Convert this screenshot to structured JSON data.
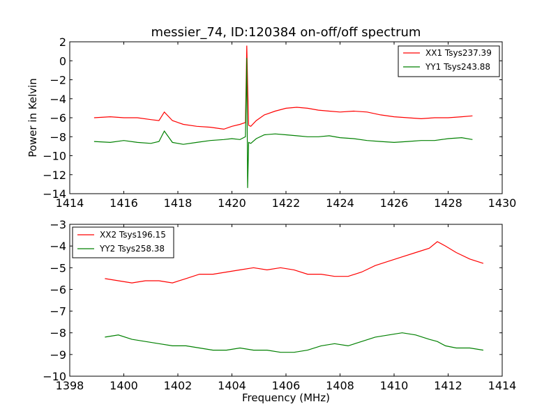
{
  "chart_data": [
    {
      "type": "line",
      "title": "messier_74, ID:120384 on-off/off spectrum",
      "ylabel": "Power in Kelvin",
      "xlabel": "",
      "xlim": [
        1414,
        1430
      ],
      "ylim": [
        -14,
        2
      ],
      "xticks": [
        1414,
        1416,
        1418,
        1420,
        1422,
        1424,
        1426,
        1428,
        1430
      ],
      "yticks": [
        -14,
        -12,
        -10,
        -8,
        -6,
        -4,
        -2,
        0,
        2
      ],
      "xtick_labels": [
        "1414",
        "1416",
        "1418",
        "1420",
        "1422",
        "1424",
        "1426",
        "1428",
        "1430"
      ],
      "ytick_labels": [
        "−14",
        "−12",
        "−10",
        "−8",
        "−6",
        "−4",
        "−2",
        "0",
        "2"
      ],
      "grid": false,
      "legend_position": "top-right",
      "series": [
        {
          "name": "XX1 Tsys237.39",
          "color": "#ff0000",
          "x": [
            1414.9,
            1415.5,
            1416.0,
            1416.5,
            1417.0,
            1417.3,
            1417.5,
            1417.8,
            1418.2,
            1418.7,
            1419.2,
            1419.7,
            1420.0,
            1420.3,
            1420.5,
            1420.55,
            1420.58,
            1420.62,
            1420.7,
            1420.9,
            1421.2,
            1421.6,
            1422.0,
            1422.4,
            1422.8,
            1423.2,
            1423.6,
            1424.0,
            1424.5,
            1425.0,
            1425.5,
            1426.0,
            1426.5,
            1427.0,
            1427.5,
            1428.0,
            1428.5,
            1428.9
          ],
          "y": [
            -6.0,
            -5.9,
            -6.0,
            -6.0,
            -6.2,
            -6.3,
            -5.4,
            -6.3,
            -6.7,
            -6.9,
            -7.0,
            -7.2,
            -6.9,
            -6.7,
            -6.5,
            1.6,
            -2.5,
            -6.8,
            -6.9,
            -6.3,
            -5.7,
            -5.3,
            -5.0,
            -4.9,
            -5.0,
            -5.2,
            -5.3,
            -5.4,
            -5.3,
            -5.4,
            -5.7,
            -5.9,
            -6.0,
            -6.1,
            -6.0,
            -6.0,
            -5.9,
            -5.8
          ]
        },
        {
          "name": "YY1 Tsys243.88",
          "color": "#008000",
          "x": [
            1414.9,
            1415.5,
            1416.0,
            1416.5,
            1417.0,
            1417.3,
            1417.5,
            1417.8,
            1418.2,
            1418.7,
            1419.2,
            1419.7,
            1420.0,
            1420.3,
            1420.5,
            1420.55,
            1420.58,
            1420.62,
            1420.7,
            1420.9,
            1421.2,
            1421.6,
            1422.0,
            1422.4,
            1422.8,
            1423.2,
            1423.6,
            1424.0,
            1424.5,
            1425.0,
            1425.5,
            1426.0,
            1426.5,
            1427.0,
            1427.5,
            1428.0,
            1428.5,
            1428.9
          ],
          "y": [
            -8.5,
            -8.6,
            -8.4,
            -8.6,
            -8.7,
            -8.5,
            -7.4,
            -8.6,
            -8.8,
            -8.6,
            -8.4,
            -8.3,
            -8.2,
            -8.3,
            -8.0,
            0.3,
            -13.4,
            -8.6,
            -8.7,
            -8.2,
            -7.8,
            -7.7,
            -7.8,
            -7.9,
            -8.0,
            -8.0,
            -7.9,
            -8.1,
            -8.2,
            -8.4,
            -8.5,
            -8.6,
            -8.5,
            -8.4,
            -8.4,
            -8.2,
            -8.1,
            -8.3
          ]
        }
      ]
    },
    {
      "type": "line",
      "title": "",
      "ylabel": "",
      "xlabel": "Frequency (MHz)",
      "xlim": [
        1398,
        1414
      ],
      "ylim": [
        -10,
        -3
      ],
      "xticks": [
        1398,
        1400,
        1402,
        1404,
        1406,
        1408,
        1410,
        1412,
        1414
      ],
      "yticks": [
        -10,
        -9,
        -8,
        -7,
        -6,
        -5,
        -4,
        -3
      ],
      "xtick_labels": [
        "1398",
        "1400",
        "1402",
        "1404",
        "1406",
        "1408",
        "1410",
        "1412",
        "1414"
      ],
      "ytick_labels": [
        "−10",
        "−9",
        "−8",
        "−7",
        "−6",
        "−5",
        "−4",
        "−3"
      ],
      "grid": false,
      "legend_position": "top-left",
      "series": [
        {
          "name": "XX2 Tsys196.15",
          "color": "#ff0000",
          "x": [
            1399.3,
            1399.8,
            1400.3,
            1400.8,
            1401.3,
            1401.8,
            1402.3,
            1402.8,
            1403.3,
            1403.8,
            1404.3,
            1404.8,
            1405.3,
            1405.8,
            1406.3,
            1406.8,
            1407.3,
            1407.8,
            1408.3,
            1408.8,
            1409.3,
            1409.8,
            1410.3,
            1410.8,
            1411.3,
            1411.6,
            1411.9,
            1412.3,
            1412.8,
            1413.3
          ],
          "y": [
            -5.5,
            -5.6,
            -5.7,
            -5.6,
            -5.6,
            -5.7,
            -5.5,
            -5.3,
            -5.3,
            -5.2,
            -5.1,
            -5.0,
            -5.1,
            -5.0,
            -5.1,
            -5.3,
            -5.3,
            -5.4,
            -5.4,
            -5.2,
            -4.9,
            -4.7,
            -4.5,
            -4.3,
            -4.1,
            -3.8,
            -4.0,
            -4.3,
            -4.6,
            -4.8
          ]
        },
        {
          "name": "YY2 Tsys258.38",
          "color": "#008000",
          "x": [
            1399.3,
            1399.8,
            1400.3,
            1400.8,
            1401.3,
            1401.8,
            1402.3,
            1402.8,
            1403.3,
            1403.8,
            1404.3,
            1404.8,
            1405.3,
            1405.8,
            1406.3,
            1406.8,
            1407.3,
            1407.8,
            1408.3,
            1408.8,
            1409.3,
            1409.8,
            1410.3,
            1410.8,
            1411.3,
            1411.6,
            1411.9,
            1412.3,
            1412.8,
            1413.3
          ],
          "y": [
            -8.2,
            -8.1,
            -8.3,
            -8.4,
            -8.5,
            -8.6,
            -8.6,
            -8.7,
            -8.8,
            -8.8,
            -8.7,
            -8.8,
            -8.8,
            -8.9,
            -8.9,
            -8.8,
            -8.6,
            -8.5,
            -8.6,
            -8.4,
            -8.2,
            -8.1,
            -8.0,
            -8.1,
            -8.3,
            -8.4,
            -8.6,
            -8.7,
            -8.7,
            -8.8
          ]
        }
      ]
    }
  ]
}
